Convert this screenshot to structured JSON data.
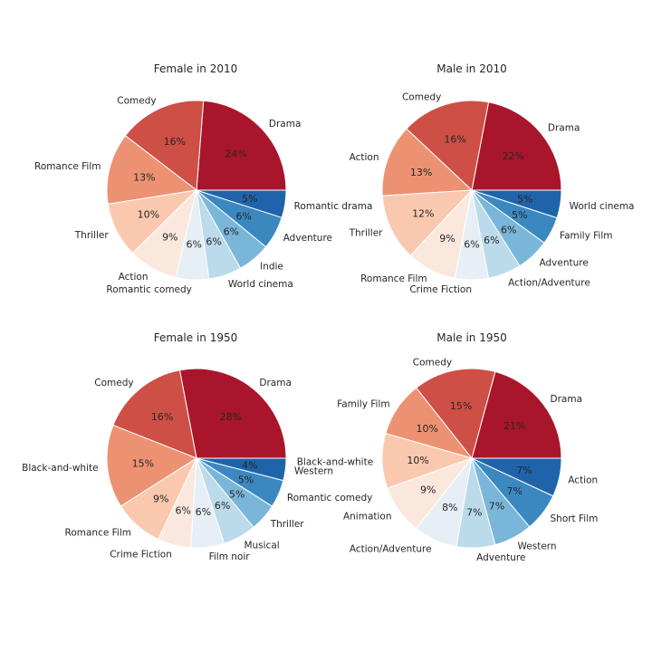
{
  "chart_data": [
    {
      "type": "pie",
      "title": "Female in 2010",
      "categories": [
        "Drama",
        "Comedy",
        "Romance Film",
        "Thriller",
        "Action",
        "Romantic comedy",
        "World cinema",
        "Indie",
        "Adventure",
        "Romantic drama"
      ],
      "values": [
        24,
        16,
        13,
        10,
        9,
        6,
        6,
        6,
        6,
        5
      ],
      "value_labels": [
        "24%",
        "16%",
        "13%",
        "10%",
        "9%",
        "6%",
        "6%",
        "6%",
        "6%",
        "5%"
      ]
    },
    {
      "type": "pie",
      "title": "Male in 2010",
      "categories": [
        "Drama",
        "Comedy",
        "Action",
        "Thriller",
        "Romance Film",
        "Crime Fiction",
        "Action/Adventure",
        "Adventure",
        "Family Film",
        "World cinema"
      ],
      "values": [
        22,
        16,
        13,
        12,
        9,
        6,
        6,
        6,
        5,
        5
      ],
      "value_labels": [
        "22%",
        "16%",
        "13%",
        "12%",
        "9%",
        "6%",
        "6%",
        "6%",
        "5%",
        "5%"
      ]
    },
    {
      "type": "pie",
      "title": "Female in 1950",
      "categories": [
        "Drama",
        "Comedy",
        "Black-and-white",
        "Romance Film",
        "Crime Fiction",
        "Film noir",
        "Musical",
        "Thriller",
        "Romantic comedy",
        "Western"
      ],
      "values": [
        28,
        16,
        15,
        9,
        6,
        6,
        6,
        5,
        5,
        4
      ],
      "value_labels": [
        "28%",
        "16%",
        "15%",
        "9%",
        "6%",
        "6%",
        "6%",
        "5%",
        "5%",
        "4%"
      ]
    },
    {
      "type": "pie",
      "title": "Male in 1950",
      "categories": [
        "Drama",
        "Comedy",
        "Family Film",
        "Black-and-white",
        "Animation",
        "Action/Adventure",
        "Adventure",
        "Western",
        "Short Film",
        "Action"
      ],
      "values": [
        21,
        15,
        10,
        10,
        9,
        8,
        7,
        7,
        7,
        7
      ],
      "value_labels": [
        "21%",
        "15%",
        "10%",
        "10%",
        "9%",
        "8%",
        "7%",
        "7%",
        "7%",
        "7%"
      ]
    }
  ],
  "colors": [
    "#a9162b",
    "#ce4f45",
    "#ec9272",
    "#fac8af",
    "#fae8dd",
    "#e5eff5",
    "#bbdaea",
    "#7ab6d9",
    "#3b88c0",
    "#1f64aa"
  ]
}
